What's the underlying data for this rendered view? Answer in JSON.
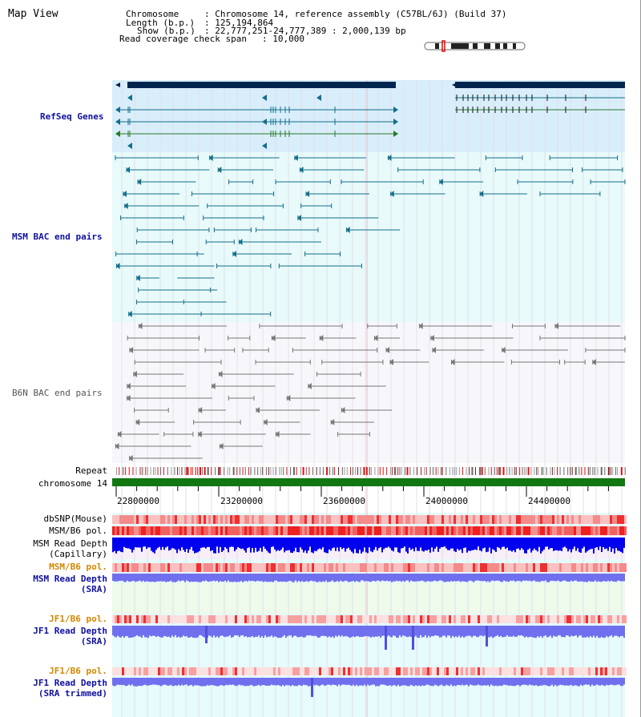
{
  "pane_title": "Map View",
  "info": {
    "chromosome_key": "Chromosome",
    "chromosome_val": ": Chromosome 14, reference assembly (C57BL/6J) (Build 37)",
    "length_key": "Length (b.p.)",
    "length_val": ": 125,194,864",
    "show_key": "Show (b.p.)",
    "show_val": ": 22,777,251-24,777,389 : 2,000,139 bp",
    "coverage_key": "Read coverage check span",
    "coverage_val": ": 10,000"
  },
  "tracks": {
    "refseq": "RefSeq Genes",
    "msm_bac": "MSM BAC end pairs",
    "b6n_bac": "B6N BAC end pairs",
    "repeat": "Repeat",
    "chromosome": "chromosome 14",
    "dbsnp": "dbSNP(Mouse)",
    "msm_b6_pol_1": "MSM/B6 pol.",
    "msm_read_depth_cap_1": "MSM Read Depth",
    "msm_read_depth_cap_2": "(Capillary)",
    "msm_b6_pol_2": "MSM/B6 pol.",
    "msm_read_depth_sra_1": "MSM Read Depth",
    "msm_read_depth_sra_2": "(SRA)",
    "jf1_b6_pol_1": "JF1/B6 pol.",
    "jf1_read_depth_sra_1": "JF1 Read Depth",
    "jf1_read_depth_sra_2": "(SRA)",
    "jf1_b6_pol_2": "JF1/B6 pol.",
    "jf1_read_depth_trim_1": "JF1 Read Depth",
    "jf1_read_depth_trim_2": "(SRA trimmed)"
  },
  "axis": {
    "ticks": [
      "22800000",
      "23200000",
      "23600000",
      "24000000",
      "24400000"
    ]
  },
  "colors": {
    "refseq_bg": "#d8eefa",
    "msm_bg": "#e8fafa",
    "b6n_bg": "#f7f7fb",
    "lower_bg": "#e6fbfb",
    "refseq_gene": "#00254f",
    "msm_feature": "#126e8c",
    "b6n_feature": "#777777",
    "chromosome_bar": "#117711",
    "depth_capillary": "#0000ee",
    "depth_sra": "#7070ee",
    "label_blue": "#1010a0",
    "label_orange": "#d08800"
  }
}
